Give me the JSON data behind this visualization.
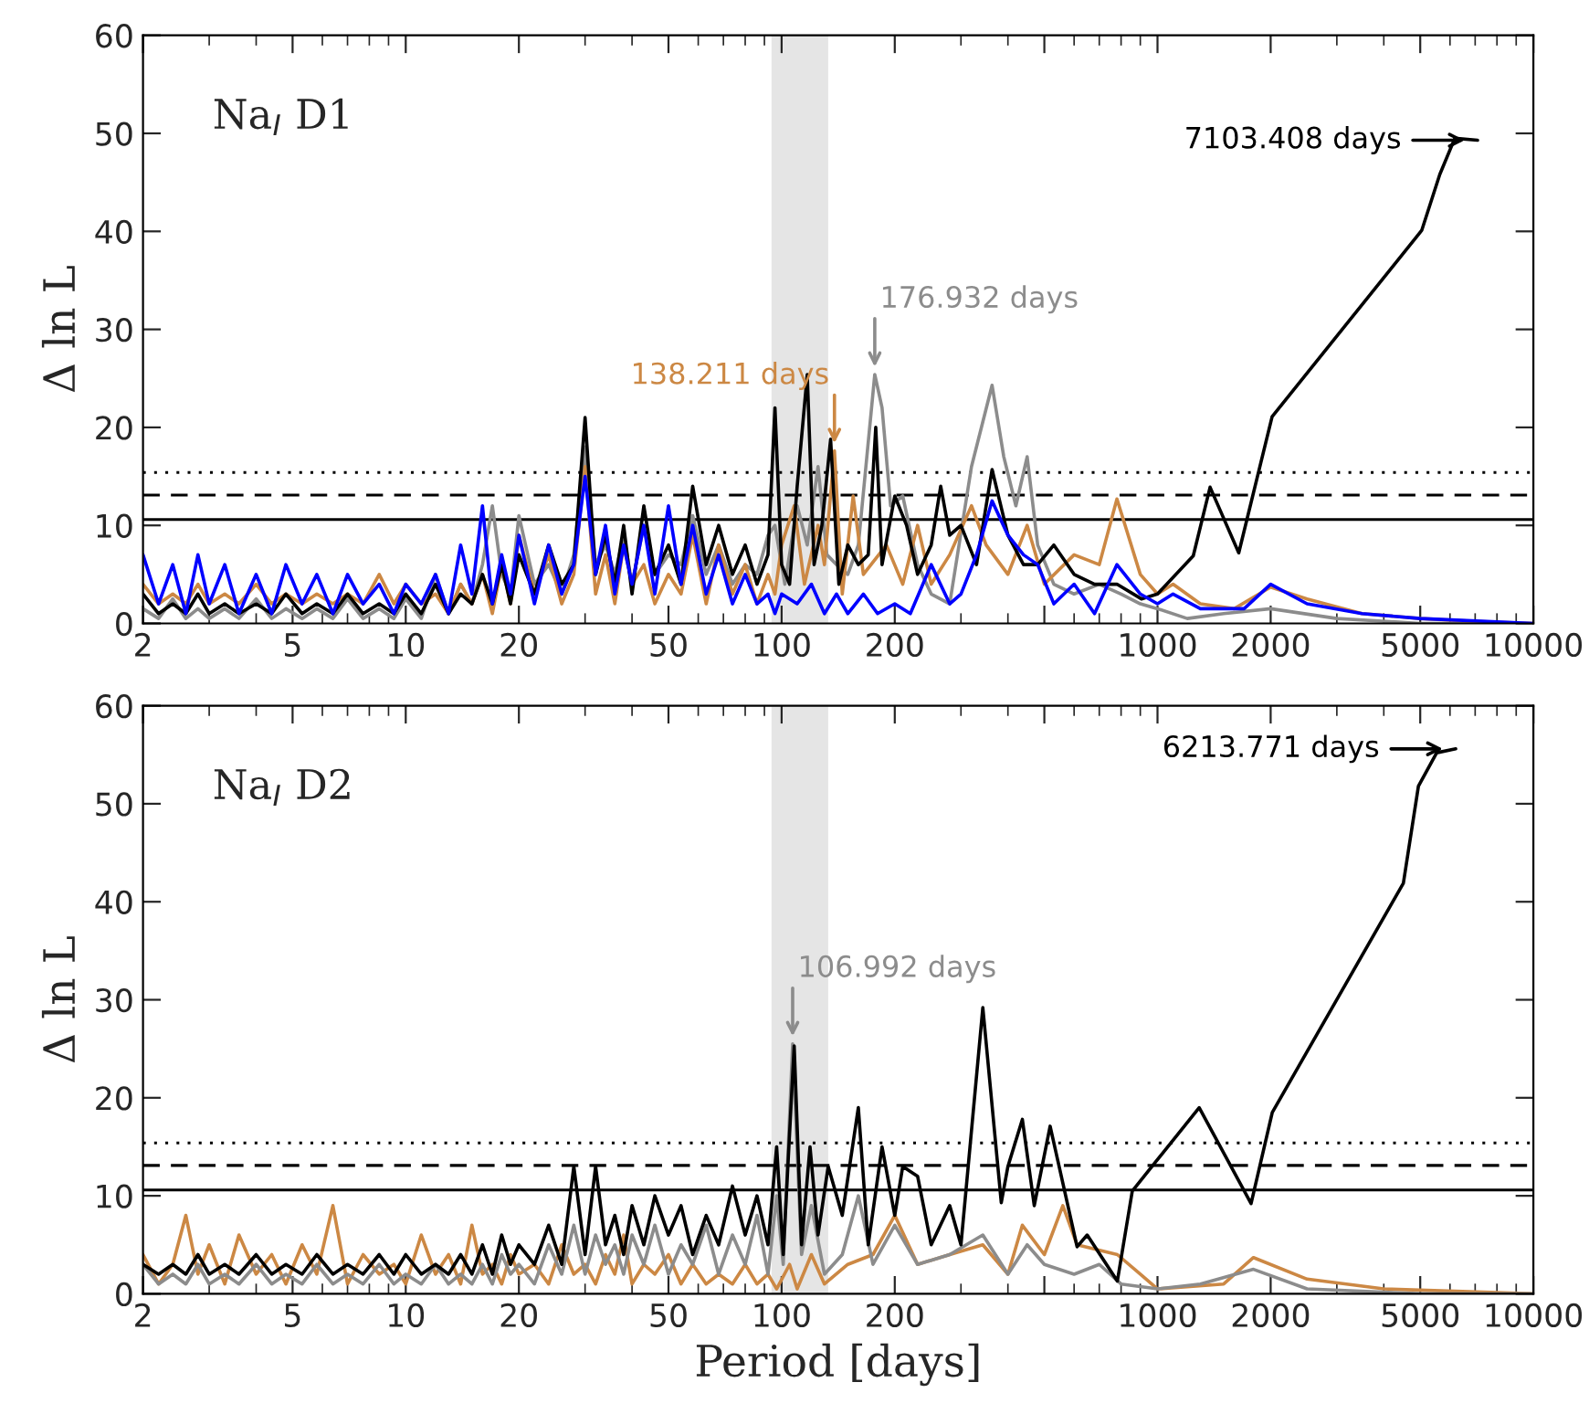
{
  "chart_data": [
    {
      "type": "line",
      "title": "Na$_{I}$ D1",
      "ylabel": "Δ ln L",
      "log": "x",
      "grid": false,
      "xlim": [
        2,
        10000
      ],
      "xticks": [
        2,
        5,
        10,
        20,
        50,
        100,
        200,
        {
          "value": 500,
          "label": null
        },
        1000,
        2000,
        5000,
        10000
      ],
      "ylim": [
        0,
        60
      ],
      "yticks": [
        0,
        10,
        20,
        30,
        40,
        50,
        60
      ],
      "series": [
        {
          "color": "#8c8c8c",
          "x": [
            2,
            2.2,
            2.4,
            2.6,
            2.8,
            3,
            3.3,
            3.6,
            4,
            4.4,
            4.8,
            5.3,
            5.8,
            6.4,
            7,
            7.7,
            8.5,
            9.3,
            10,
            11,
            12,
            13,
            14,
            15,
            16,
            17,
            18,
            19,
            20,
            22,
            24,
            26,
            28,
            30,
            32,
            34,
            36,
            38,
            40,
            43,
            46,
            50,
            54,
            58,
            63,
            68,
            74,
            80,
            86,
            92,
            96,
            102,
            110,
            117,
            125,
            132,
            140,
            150,
            160,
            176.932,
            185,
            195,
            210,
            230,
            250,
            280,
            320,
            363,
            390,
            420,
            450,
            480,
            530,
            600,
            700,
            800,
            900,
            1000,
            1200,
            1500,
            2000,
            3000,
            5000,
            10000
          ],
          "values": [
            1.5,
            0.5,
            2.5,
            0.5,
            1.5,
            0.5,
            1.5,
            0.5,
            2.5,
            0.5,
            1.5,
            0.5,
            1.5,
            0.5,
            2.5,
            0.5,
            1.5,
            0.5,
            2.5,
            0.5,
            5,
            1,
            4,
            2,
            6,
            12,
            5,
            3,
            11,
            4,
            6,
            3,
            7,
            18,
            6,
            8,
            5,
            9,
            4,
            10,
            5,
            7,
            6,
            11,
            5,
            8,
            4,
            6,
            5,
            9,
            10,
            4,
            12,
            8,
            16,
            7,
            6,
            5,
            8,
            25.4,
            22,
            12,
            13,
            6,
            3,
            2,
            16,
            24.3,
            17,
            12,
            17,
            8,
            4,
            3,
            4,
            3,
            2,
            1.5,
            0.5,
            1,
            1.5,
            0.5,
            0,
            0
          ]
        },
        {
          "color": "#cc8844",
          "x": [
            2,
            2.2,
            2.4,
            2.6,
            2.8,
            3,
            3.3,
            3.6,
            4,
            4.4,
            4.8,
            5.3,
            5.8,
            6.4,
            7,
            7.7,
            8.5,
            9.3,
            10,
            11,
            12,
            13,
            14,
            15,
            16,
            17,
            18,
            19,
            20,
            22,
            24,
            26,
            28,
            30,
            32,
            34,
            36,
            38,
            40,
            43,
            46,
            50,
            54,
            58,
            63,
            68,
            74,
            80,
            86,
            92,
            96,
            100,
            108,
            115,
            125,
            130,
            138.211,
            145,
            155,
            165,
            190,
            210,
            230,
            250,
            280,
            320,
            350,
            400,
            450,
            500,
            600,
            700,
            780,
            900,
            1000,
            1100,
            1300,
            1600,
            2000,
            2500,
            3500,
            5000,
            7000,
            10000
          ],
          "values": [
            4,
            2,
            3,
            2,
            4,
            2,
            3,
            2,
            4,
            2,
            3,
            2,
            3,
            2,
            3,
            2,
            5,
            2,
            4,
            2,
            3,
            1,
            4,
            2,
            5,
            1,
            6,
            2,
            9,
            3,
            7,
            2,
            5,
            16,
            3,
            7,
            2,
            8,
            4,
            6,
            2,
            5,
            3,
            9,
            2,
            8,
            3,
            6,
            2,
            5,
            3,
            8,
            12,
            4,
            10,
            6,
            17.6,
            3,
            13,
            5,
            8,
            4,
            10,
            4,
            7,
            12,
            8,
            5,
            10,
            4,
            7,
            6,
            12.7,
            5,
            3,
            4,
            2,
            1.5,
            3.7,
            2.5,
            1,
            0.5,
            0.2,
            0
          ]
        },
        {
          "color": "#000000",
          "x": [
            2,
            2.2,
            2.4,
            2.6,
            2.8,
            3,
            3.3,
            3.6,
            4,
            4.4,
            4.8,
            5.3,
            5.8,
            6.4,
            7,
            7.7,
            8.5,
            9.3,
            10,
            11,
            12,
            13,
            14,
            15,
            16,
            17,
            18,
            19,
            20,
            22,
            24,
            26,
            28,
            30,
            32,
            34,
            36,
            38,
            40,
            43,
            46,
            50,
            54,
            58,
            63,
            68,
            74,
            80,
            86,
            92,
            96,
            100,
            105,
            110,
            117,
            122,
            128,
            135,
            142,
            150,
            160,
            170,
            178,
            185,
            200,
            215,
            230,
            250,
            265,
            280,
            300,
            330,
            363,
            400,
            440,
            480,
            530,
            600,
            680,
            780,
            906,
            1000,
            1245,
            1380,
            1645,
            2018,
            5046,
            5636,
            6180,
            7103.408
          ],
          "values": [
            3,
            1,
            2,
            1,
            3,
            1,
            2,
            1,
            2,
            1,
            3,
            1,
            2,
            1,
            3,
            1,
            2,
            1,
            3,
            1,
            4,
            1,
            3,
            2,
            5,
            2,
            6,
            2,
            7,
            3,
            8,
            4,
            6,
            21,
            5,
            9,
            4,
            10,
            3,
            12,
            5,
            8,
            4,
            14,
            6,
            10,
            5,
            8,
            4,
            7,
            22,
            6,
            4,
            14,
            25.4,
            6,
            10,
            18.8,
            4,
            8,
            6,
            7,
            20,
            6,
            13,
            10,
            5,
            8,
            14,
            9,
            10,
            6,
            15.7,
            9,
            6,
            6,
            8,
            5,
            4,
            4,
            2.5,
            3,
            6.9,
            13.9,
            7.2,
            21.1,
            40.1,
            45.8,
            49.5,
            49.3
          ]
        },
        {
          "color": "#0000ff",
          "x": [
            2,
            2.2,
            2.4,
            2.6,
            2.8,
            3,
            3.3,
            3.6,
            4,
            4.4,
            4.8,
            5.3,
            5.8,
            6.4,
            7,
            7.7,
            8.5,
            9.3,
            10,
            11,
            12,
            13,
            14,
            15,
            16,
            17,
            18,
            19,
            20,
            22,
            24,
            26,
            28,
            30,
            32,
            34,
            36,
            38,
            40,
            43,
            46,
            50,
            54,
            58,
            63,
            68,
            74,
            80,
            86,
            92,
            96,
            100,
            110,
            120,
            130,
            140,
            150,
            165,
            180,
            200,
            220,
            250,
            280,
            300,
            330,
            363,
            400,
            440,
            480,
            530,
            600,
            680,
            780,
            900,
            1000,
            1100,
            1300,
            1700,
            2000,
            2500,
            3500,
            5000,
            10000
          ],
          "values": [
            7,
            2,
            6,
            1,
            7,
            2,
            6,
            1,
            5,
            1,
            6,
            2,
            5,
            1,
            5,
            2,
            4,
            1,
            4,
            2,
            5,
            1,
            8,
            3,
            12,
            2,
            7,
            3,
            9,
            2,
            8,
            3,
            6,
            15,
            5,
            10,
            3,
            8,
            4,
            10,
            3,
            12,
            4,
            10,
            3,
            7,
            2,
            5,
            2,
            3,
            1,
            3,
            2,
            4,
            1,
            3,
            1,
            3,
            1,
            2,
            1,
            6,
            2,
            3,
            7,
            12.5,
            9,
            7,
            6,
            2,
            4,
            1,
            6,
            3,
            2,
            3,
            1.5,
            1.5,
            4,
            2,
            1,
            0.5,
            0
          ]
        }
      ],
      "ref_lines": [
        {
          "axis": "y",
          "value": 10.6,
          "line_style": "solid",
          "color": "#000000"
        },
        {
          "axis": "y",
          "value": 13.1,
          "line_style": "dashed",
          "color": "#000000"
        },
        {
          "axis": "y",
          "value": 15.4,
          "line_style": "dotted",
          "color": "#000000"
        }
      ],
      "bands": [
        {
          "axis": "x",
          "from": 94,
          "to": 133,
          "color": "#e5e5e5"
        }
      ],
      "annotations": [
        {
          "text": "138.211 days",
          "x": 138.211,
          "y": 17.6
        },
        {
          "text": "176.932 days",
          "x": 176.932,
          "y": 25.4
        },
        {
          "text": "7103.408 days",
          "x": 7103.408,
          "y": 49.3
        }
      ]
    },
    {
      "type": "line",
      "title": "Na$_{I}$ D2",
      "ylabel": "Δ ln L",
      "xlabel": "Period [days]",
      "log": "x",
      "grid": false,
      "xlim": [
        2,
        10000
      ],
      "xticks": [
        2,
        5,
        10,
        20,
        50,
        100,
        200,
        {
          "value": 500,
          "label": null
        },
        1000,
        2000,
        5000,
        10000
      ],
      "ylim": [
        0,
        60
      ],
      "yticks": [
        0,
        10,
        20,
        30,
        40,
        50,
        60
      ],
      "series": [
        {
          "color": "#cc8844",
          "x": [
            2,
            2.2,
            2.4,
            2.6,
            2.8,
            3,
            3.3,
            3.6,
            4,
            4.4,
            4.8,
            5.3,
            5.8,
            6.4,
            7,
            7.7,
            8.5,
            9.3,
            10,
            11,
            12,
            13,
            14,
            15,
            16,
            17,
            18,
            19,
            20,
            22,
            24,
            26,
            28,
            30,
            32,
            34,
            36,
            38,
            40,
            43,
            46,
            50,
            54,
            58,
            63,
            68,
            74,
            80,
            86,
            92,
            97,
            105,
            110,
            120,
            130,
            150,
            175,
            200,
            230,
            280,
            343,
            400,
            437,
            500,
            560,
            611,
            782,
            900,
            1000,
            1500,
            1800,
            2500,
            4000,
            10000
          ],
          "values": [
            4,
            1,
            3,
            8,
            2,
            5,
            1,
            6,
            2,
            4,
            1,
            5,
            2,
            9,
            1,
            4,
            2,
            3,
            1,
            6,
            2,
            4,
            1,
            7,
            2,
            3,
            1,
            4,
            2,
            3,
            1,
            5,
            2,
            3,
            1,
            4,
            2,
            6,
            1,
            3,
            2,
            4,
            1,
            3,
            1,
            2,
            1,
            3,
            1,
            2,
            0.5,
            3,
            0.5,
            4,
            1,
            3,
            4,
            8,
            3,
            4,
            5,
            2,
            7,
            4,
            9,
            5,
            4,
            2,
            0.5,
            1,
            3.7,
            1.5,
            0.5,
            0
          ]
        },
        {
          "color": "#8c8c8c",
          "x": [
            2,
            2.2,
            2.4,
            2.6,
            2.8,
            3,
            3.3,
            3.6,
            4,
            4.4,
            4.8,
            5.3,
            5.8,
            6.4,
            7,
            7.7,
            8.5,
            9.3,
            10,
            11,
            12,
            13,
            14,
            15,
            16,
            17,
            18,
            19,
            20,
            22,
            24,
            26,
            28,
            30,
            32,
            34,
            36,
            38,
            40,
            43,
            46,
            50,
            54,
            58,
            63,
            68,
            74,
            80,
            86,
            92,
            97,
            101,
            106.992,
            113,
            120,
            130,
            145,
            160,
            175,
            200,
            230,
            280,
            343,
            400,
            450,
            500,
            600,
            700,
            800,
            1000,
            1300,
            1800,
            2500,
            5000,
            10000
          ],
          "values": [
            3,
            1,
            2,
            1,
            3,
            1,
            2,
            1,
            3,
            1,
            2,
            1,
            3,
            1,
            2,
            1,
            3,
            1,
            2,
            1,
            3,
            1,
            2,
            1,
            3,
            1,
            4,
            2,
            3,
            1,
            5,
            2,
            7,
            2,
            6,
            3,
            5,
            2,
            6,
            3,
            7,
            2,
            5,
            3,
            7,
            2,
            6,
            3,
            8,
            2,
            10,
            3,
            25.5,
            4,
            9,
            2,
            4,
            10,
            3,
            7,
            3,
            4,
            6,
            2,
            5,
            3,
            2,
            3,
            1,
            0.5,
            1,
            2.5,
            0.5,
            0,
            0
          ]
        },
        {
          "color": "#000000",
          "x": [
            2,
            2.2,
            2.4,
            2.6,
            2.8,
            3,
            3.3,
            3.6,
            4,
            4.4,
            4.8,
            5.3,
            5.8,
            6.4,
            7,
            7.7,
            8.5,
            9.3,
            10,
            11,
            12,
            13,
            14,
            15,
            16,
            17,
            18,
            19,
            20,
            22,
            24,
            26,
            28,
            30,
            32,
            34,
            36,
            38,
            40,
            43,
            46,
            50,
            54,
            58,
            63,
            68,
            74,
            80,
            86,
            92,
            97,
            101,
            108,
            113,
            119,
            125,
            133,
            145,
            160,
            170,
            185,
            200,
            210,
            230,
            250,
            280,
            300,
            343,
            384,
            400,
            437,
            470,
            518,
            611,
            650,
            782,
            857,
            1291,
            1774,
            2020,
            4510,
            4945,
            5530,
            6213.771
          ],
          "values": [
            3,
            2,
            3,
            2,
            4,
            2,
            3,
            2,
            4,
            2,
            3,
            2,
            4,
            2,
            3,
            2,
            4,
            2,
            4,
            2,
            3,
            2,
            4,
            2,
            5,
            2,
            6,
            3,
            5,
            3,
            7,
            3,
            13,
            4,
            13,
            5,
            8,
            4,
            9,
            5,
            10,
            6,
            9,
            4,
            8,
            5,
            11,
            6,
            10,
            5,
            15,
            4,
            25.3,
            5,
            15,
            6,
            13,
            8,
            19,
            5,
            15,
            8,
            13,
            12,
            5,
            9,
            5,
            29.2,
            9.3,
            13,
            17.8,
            9,
            17.1,
            4.8,
            6,
            1.3,
            10.5,
            19,
            9.2,
            18.5,
            41.9,
            51.8,
            55.2,
            55.6
          ]
        }
      ],
      "ref_lines": [
        {
          "axis": "y",
          "value": 10.6,
          "line_style": "solid",
          "color": "#000000"
        },
        {
          "axis": "y",
          "value": 13.1,
          "line_style": "dashed",
          "color": "#000000"
        },
        {
          "axis": "y",
          "value": 15.4,
          "line_style": "dotted",
          "color": "#000000"
        }
      ],
      "bands": [
        {
          "axis": "x",
          "from": 94,
          "to": 133,
          "color": "#e5e5e5"
        }
      ],
      "annotations": [
        {
          "text": "106.992 days",
          "x": 106.992,
          "y": 25.5
        },
        {
          "text": "6213.771 days",
          "x": 6213.771,
          "y": 55.6
        }
      ]
    }
  ]
}
